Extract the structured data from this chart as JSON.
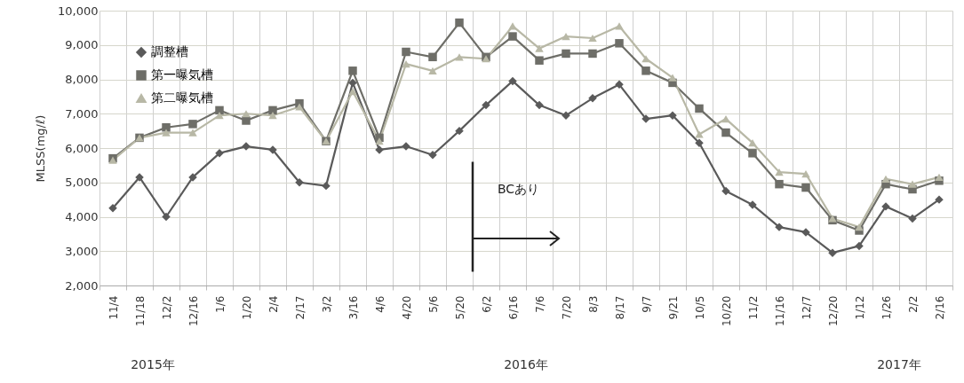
{
  "chart_data": {
    "type": "line",
    "ylabel": "MLSS(mg/ℓ)",
    "categories": [
      "11/4",
      "11/18",
      "12/2",
      "12/16",
      "1/6",
      "1/20",
      "2/4",
      "2/17",
      "3/2",
      "3/16",
      "4/6",
      "4/20",
      "5/6",
      "5/20",
      "6/2",
      "6/16",
      "7/6",
      "7/20",
      "8/3",
      "8/17",
      "9/7",
      "9/21",
      "10/5",
      "10/20",
      "11/2",
      "11/16",
      "12/7",
      "12/20",
      "1/12",
      "1/26",
      "2/2",
      "2/16"
    ],
    "series": [
      {
        "name": "調整槽",
        "color": "#5a5a5a",
        "marker": "diamond",
        "values": [
          4250,
          5150,
          4000,
          5150,
          5850,
          6050,
          5950,
          5000,
          4900,
          7900,
          5950,
          6050,
          5800,
          6500,
          7250,
          7950,
          7250,
          6950,
          7450,
          7850,
          6850,
          6950,
          6150,
          4750,
          4350,
          3700,
          3550,
          2950,
          3150,
          4300,
          3950,
          4500
        ]
      },
      {
        "name": "第一曝気槽",
        "color": "#6e6e68",
        "marker": "square",
        "values": [
          5700,
          6300,
          6600,
          6700,
          7100,
          6800,
          7100,
          7300,
          6200,
          8250,
          6300,
          8800,
          8650,
          9650,
          8650,
          9250,
          8550,
          8750,
          8750,
          9050,
          8250,
          7900,
          7150,
          6450,
          5850,
          4950,
          4850,
          3900,
          3600,
          4950,
          4800,
          5050
        ]
      },
      {
        "name": "第二曝気槽",
        "color": "#b8b8a6",
        "marker": "triangle",
        "values": [
          5650,
          6300,
          6450,
          6450,
          6950,
          7000,
          6950,
          7200,
          6200,
          7650,
          6200,
          8450,
          8250,
          8650,
          8600,
          9550,
          8900,
          9250,
          9200,
          9550,
          8600,
          8050,
          6400,
          6850,
          6150,
          5300,
          5250,
          3950,
          3700,
          5100,
          4950,
          5150
        ]
      }
    ],
    "ylim": [
      2000,
      10000
    ],
    "yticks": [
      {
        "value": 2000,
        "label": "2,000"
      },
      {
        "value": 3000,
        "label": "3,000"
      },
      {
        "value": 4000,
        "label": "4,000"
      },
      {
        "value": 5000,
        "label": "5,000"
      },
      {
        "value": 6000,
        "label": "6,000"
      },
      {
        "value": 7000,
        "label": "7,000"
      },
      {
        "value": 8000,
        "label": "8,000"
      },
      {
        "value": 9000,
        "label": "9,000"
      },
      {
        "value": 10000,
        "label": "10,000"
      }
    ],
    "grid": "y",
    "legend": "top left",
    "ref_lines": [
      {
        "axis": "x",
        "value": "5/20",
        "label": "BCあり",
        "color": "#222222"
      }
    ],
    "annotations": [
      "2015年",
      "2016年",
      "2017年"
    ]
  }
}
